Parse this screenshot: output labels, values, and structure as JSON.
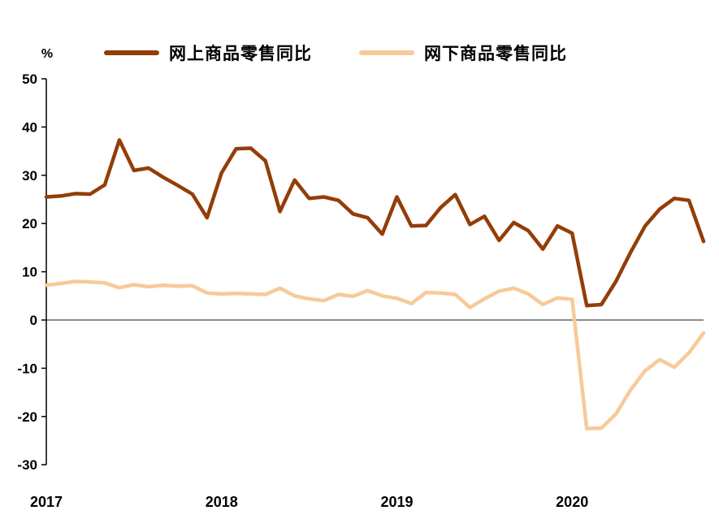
{
  "chart_data": {
    "type": "line",
    "title": "",
    "unit_label": "%",
    "x_tick_labels": [
      "2017",
      "2018",
      "2019",
      "2020"
    ],
    "y_ticks": [
      50,
      40,
      30,
      20,
      10,
      0,
      -10,
      -20,
      -30
    ],
    "ylim": [
      -30,
      50
    ],
    "months_per_year": 12,
    "grid": "off",
    "legend_position": "top",
    "zero_line_color": "#8c8c8c",
    "axis_color": "#000000",
    "series": [
      {
        "name": "网上商品零售同比",
        "color": "#933d08",
        "values": [
          25.5,
          25.7,
          26.2,
          26.1,
          28.0,
          37.3,
          31.0,
          31.5,
          29.6,
          27.9,
          26.1,
          21.2,
          30.5,
          35.5,
          35.6,
          33.0,
          22.5,
          29.0,
          25.2,
          25.5,
          24.8,
          22.0,
          21.2,
          17.8,
          25.5,
          19.5,
          19.6,
          23.3,
          26.0,
          19.8,
          21.5,
          16.5,
          20.2,
          18.5,
          14.7,
          19.5,
          18.0,
          3.0,
          3.2,
          8.0,
          14.0,
          19.5,
          23.0,
          25.2,
          24.8,
          16.3
        ]
      },
      {
        "name": "网下商品零售同比",
        "color": "#f7ca99",
        "values": [
          7.2,
          7.6,
          8.0,
          7.9,
          7.7,
          6.7,
          7.3,
          6.9,
          7.2,
          7.0,
          7.1,
          5.6,
          5.4,
          5.5,
          5.4,
          5.3,
          6.6,
          5.0,
          4.4,
          4.0,
          5.3,
          4.9,
          6.1,
          5.0,
          4.5,
          3.4,
          5.7,
          5.6,
          5.3,
          2.6,
          4.4,
          6.0,
          6.6,
          5.4,
          3.2,
          4.6,
          4.3,
          -22.5,
          -22.4,
          -19.5,
          -14.5,
          -10.5,
          -8.2,
          -9.8,
          -6.8,
          -2.7
        ]
      }
    ]
  }
}
